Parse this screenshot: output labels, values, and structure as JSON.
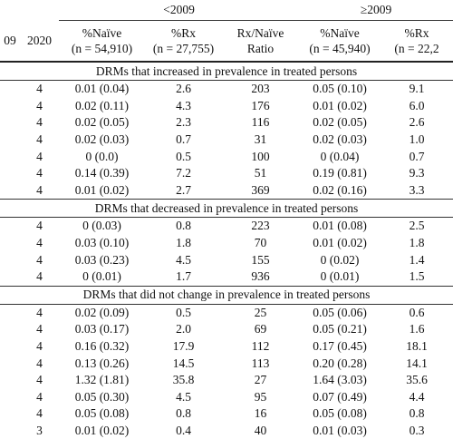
{
  "header": {
    "groups": [
      {
        "label": "<2009",
        "start": 2,
        "span": 3
      },
      {
        "label": "≥2009",
        "start": 5,
        "span": 2
      }
    ],
    "columns": [
      [
        "09"
      ],
      [
        "2020"
      ],
      [
        "%Naïve",
        "(n = 54,910)"
      ],
      [
        "%Rx",
        "(n = 27,755)"
      ],
      [
        "Rx/Naïve",
        "Ratio"
      ],
      [
        "%Naïve",
        "(n = 45,940)"
      ],
      [
        "%Rx",
        "(n = 22,2"
      ]
    ]
  },
  "sections": [
    {
      "title": "DRMs that increased in prevalence in treated persons",
      "rows": [
        [
          "4",
          "0.01 (0.04)",
          "2.6",
          "203",
          "0.05 (0.10)",
          "9.1"
        ],
        [
          "4",
          "0.02 (0.11)",
          "4.3",
          "176",
          "0.01 (0.02)",
          "6.0"
        ],
        [
          "4",
          "0.02 (0.05)",
          "2.3",
          "116",
          "0.02 (0.05)",
          "2.6"
        ],
        [
          "4",
          "0.02 (0.03)",
          "0.7",
          "31",
          "0.02 (0.03)",
          "1.0"
        ],
        [
          "4",
          "0 (0.0)",
          "0.5",
          "100",
          "0 (0.04)",
          "0.7"
        ],
        [
          "4",
          "0.14 (0.39)",
          "7.2",
          "51",
          "0.19 (0.81)",
          "9.3"
        ],
        [
          "4",
          "0.01 (0.02)",
          "2.7",
          "369",
          "0.02 (0.16)",
          "3.3"
        ]
      ]
    },
    {
      "title": "DRMs that decreased in prevalence in treated persons",
      "rows": [
        [
          "4",
          "0 (0.03)",
          "0.8",
          "223",
          "0.01 (0.08)",
          "2.5"
        ],
        [
          "4",
          "0.03 (0.10)",
          "1.8",
          "70",
          "0.01 (0.02)",
          "1.8"
        ],
        [
          "4",
          "0.03 (0.23)",
          "4.5",
          "155",
          "0 (0.02)",
          "1.4"
        ],
        [
          "4",
          "0 (0.01)",
          "1.7",
          "936",
          "0 (0.01)",
          "1.5"
        ]
      ]
    },
    {
      "title": "DRMs that did not change in prevalence in treated persons",
      "rows": [
        [
          "4",
          "0.02 (0.09)",
          "0.5",
          "25",
          "0.05 (0.06)",
          "0.6"
        ],
        [
          "4",
          "0.03 (0.17)",
          "2.0",
          "69",
          "0.05 (0.21)",
          "1.6"
        ],
        [
          "4",
          "0.16 (0.32)",
          "17.9",
          "112",
          "0.17 (0.45)",
          "18.1"
        ],
        [
          "4",
          "0.13 (0.26)",
          "14.5",
          "113",
          "0.20 (0.28)",
          "14.1"
        ],
        [
          "4",
          "1.32 (1.81)",
          "35.8",
          "27",
          "1.64 (3.03)",
          "35.6"
        ],
        [
          "4",
          "0.05 (0.30)",
          "4.5",
          "95",
          "0.07 (0.49)",
          "4.4"
        ],
        [
          "4",
          "0.05 (0.08)",
          "0.8",
          "16",
          "0.05 (0.08)",
          "0.8"
        ],
        [
          "3",
          "0.01 (0.02)",
          "0.4",
          "40",
          "0.01 (0.03)",
          "0.3"
        ]
      ]
    }
  ]
}
